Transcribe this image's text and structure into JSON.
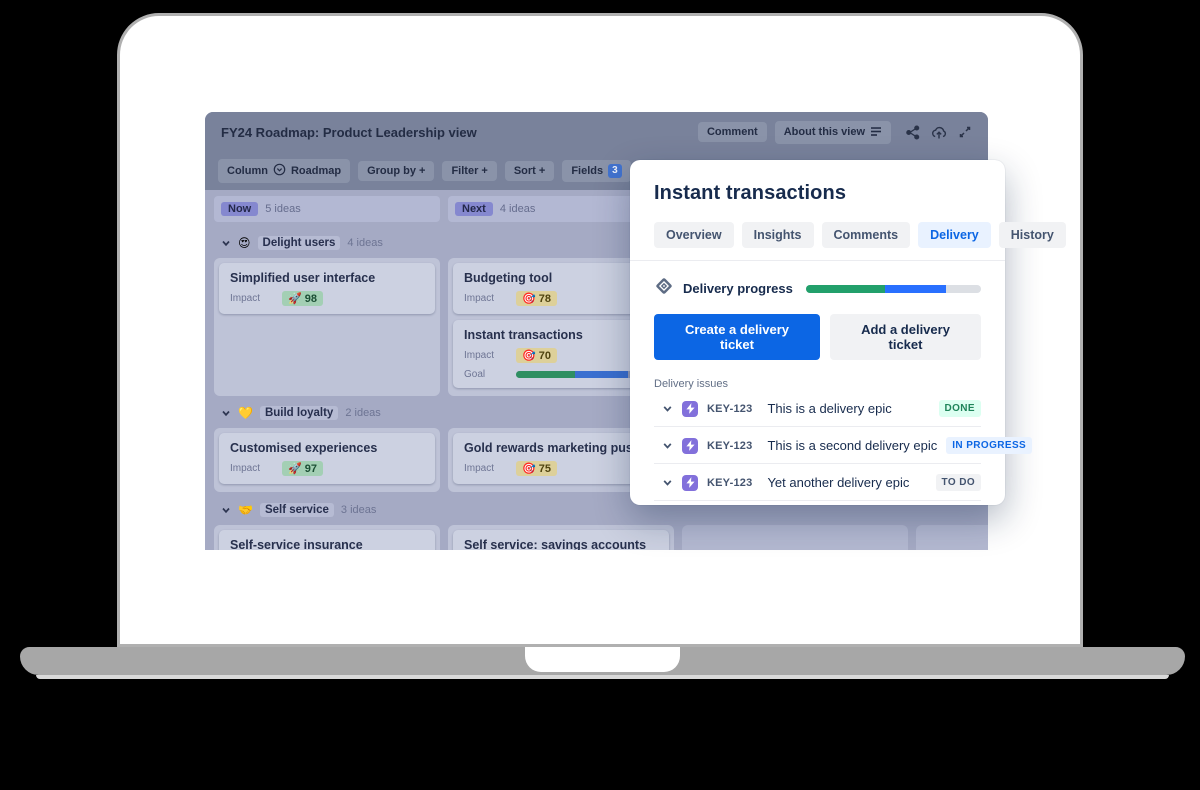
{
  "app": {
    "title": "FY24 Roadmap: Product Leadership view",
    "actions": {
      "comment": "Comment",
      "about": "About this view"
    },
    "toolbar": {
      "column": "Column",
      "view": "Roadmap",
      "group_by": "Group by +",
      "filter": "Filter +",
      "sort": "Sort +",
      "fields": "Fields",
      "fields_count": "3",
      "sort_alpha_glyph": "A↓"
    },
    "columns": [
      {
        "name": "Now",
        "count": "5 ideas"
      },
      {
        "name": "Next",
        "count": "4 ideas"
      }
    ],
    "groups": [
      {
        "emoji": "😍",
        "name": "Delight users",
        "count": "4 ideas",
        "col1": [
          {
            "title": "Simplified user interface",
            "field_label": "Impact",
            "badge_emoji": "🚀",
            "badge_value": "98"
          }
        ],
        "col2": [
          {
            "title": "Budgeting tool",
            "field_label": "Impact",
            "badge_emoji": "🎯",
            "badge_value": "78"
          },
          {
            "title": "Instant transactions",
            "field_label": "Impact",
            "badge_emoji": "🎯",
            "badge_value": "70",
            "goal_label": "Goal",
            "goal": {
              "done_pct": 48,
              "inprogress_pct": 44
            }
          }
        ]
      },
      {
        "emoji": "💛",
        "name": "Build loyalty",
        "count": "2 ideas",
        "col1": [
          {
            "title": "Customised experiences",
            "field_label": "Impact",
            "badge_emoji": "🚀",
            "badge_value": "97"
          }
        ],
        "col2": [
          {
            "title": "Gold rewards marketing push",
            "field_label": "Impact",
            "badge_emoji": "🎯",
            "badge_value": "75"
          }
        ]
      },
      {
        "emoji": "🤝",
        "name": "Self service",
        "count": "3 ideas",
        "col1": [
          {
            "title": "Self-service insurance"
          }
        ],
        "col2": [
          {
            "title": "Self service: savings accounts"
          }
        ]
      }
    ]
  },
  "modal": {
    "title": "Instant transactions",
    "tabs": [
      "Overview",
      "Insights",
      "Comments",
      "Delivery",
      "History"
    ],
    "active_tab": "Delivery",
    "progress": {
      "label": "Delivery progress",
      "done_pct": 45,
      "inprogress_pct": 35,
      "done_color": "#22a06b",
      "inprogress_color": "#2970ff",
      "track_color": "#dcdfe4"
    },
    "buttons": {
      "primary": "Create a delivery ticket",
      "secondary": "Add a delivery ticket"
    },
    "issues": {
      "heading": "Delivery issues",
      "rows": [
        {
          "key": "KEY-123",
          "title": "This is a delivery epic",
          "status": "DONE"
        },
        {
          "key": "KEY-123",
          "title": "This is a second delivery epic",
          "status": "IN PROGRESS"
        },
        {
          "key": "KEY-123",
          "title": "Yet another delivery epic",
          "status": "TO DO"
        }
      ]
    }
  },
  "colors": {
    "accent_blue": "#0c66e4",
    "done_green": "#22a06b",
    "epic_purple": "#8270db"
  }
}
